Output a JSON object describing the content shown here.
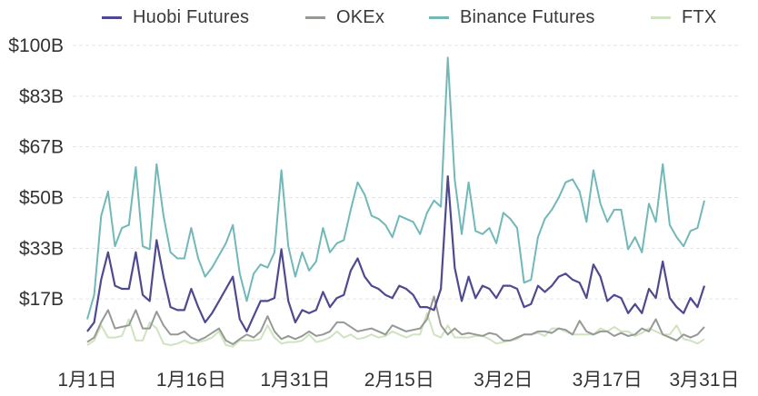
{
  "chart_data": {
    "type": "line",
    "title": "",
    "xlabel": "",
    "ylabel": "",
    "ylim": [
      0,
      100
    ],
    "y_ticks": [
      {
        "value": 16.67,
        "label": "$17B"
      },
      {
        "value": 33.33,
        "label": "$33B"
      },
      {
        "value": 50,
        "label": "$50B"
      },
      {
        "value": 66.67,
        "label": "$67B"
      },
      {
        "value": 83.33,
        "label": "$83B"
      },
      {
        "value": 100,
        "label": "$100B"
      }
    ],
    "x_ticks": [
      {
        "index": 0,
        "label": "1月1日"
      },
      {
        "index": 15,
        "label": "1月16日"
      },
      {
        "index": 30,
        "label": "1月31日"
      },
      {
        "index": 45,
        "label": "2月15日"
      },
      {
        "index": 60,
        "label": "3月2日"
      },
      {
        "index": 75,
        "label": "3月17日"
      },
      {
        "index": 89,
        "label": "3月31日"
      }
    ],
    "series": [
      {
        "name": "FTX",
        "color": "#cfe3c0",
        "values": [
          1.5,
          3,
          8,
          4,
          4,
          4.5,
          10,
          3,
          3,
          9,
          7,
          2,
          1.5,
          2,
          3,
          2,
          2.5,
          3,
          4,
          6,
          1.5,
          1,
          3,
          3,
          3,
          3.5,
          8,
          4,
          2,
          2.5,
          2.5,
          3,
          5,
          2.5,
          3,
          4,
          6,
          4,
          5,
          3.5,
          4,
          5,
          4,
          4.5,
          6,
          5,
          4,
          5,
          5,
          12,
          5,
          4,
          8,
          4,
          4,
          4,
          4.5,
          4.5,
          3.5,
          2,
          2.5,
          3,
          3.5,
          5,
          5,
          5.5,
          4.5,
          7,
          7,
          6,
          5,
          5,
          5,
          5,
          7,
          6,
          7.5,
          6,
          6,
          4.5,
          5.5,
          7,
          6,
          5,
          5,
          8,
          3.5,
          3,
          2,
          3.5
        ]
      },
      {
        "name": "OKEx",
        "color": "#959a95",
        "values": [
          2.5,
          4,
          9,
          13,
          7,
          7.5,
          8,
          13,
          7,
          7,
          12.5,
          8,
          5,
          5,
          6,
          4,
          3,
          4,
          5.5,
          7,
          3,
          1.8,
          3.5,
          5,
          4,
          6,
          11,
          6,
          3.5,
          4.5,
          3.5,
          4.5,
          6,
          4.5,
          5,
          6,
          9,
          9,
          7.5,
          6,
          6.5,
          7,
          6,
          5,
          8,
          7,
          6,
          6.5,
          7,
          10,
          17.5,
          8,
          5,
          7,
          5,
          5.5,
          5,
          4.5,
          5.5,
          5,
          3,
          3,
          4,
          5,
          5,
          6,
          6,
          5.5,
          7,
          6.5,
          5,
          9.5,
          6,
          5,
          6,
          6,
          4.5,
          5.5,
          4.5,
          5,
          7,
          6,
          10,
          5,
          4,
          3,
          5,
          4,
          5,
          7.5
        ]
      },
      {
        "name": "Binance Futures",
        "color": "#72b8b8",
        "values": [
          10,
          18,
          44,
          52,
          34,
          40,
          41,
          60,
          34,
          33,
          61,
          44,
          32,
          30,
          30,
          40,
          30,
          24,
          27,
          31,
          35,
          41,
          25,
          16,
          25,
          28,
          27,
          32,
          59,
          34,
          24,
          32,
          26,
          29,
          40,
          32,
          35,
          36,
          46,
          55,
          51,
          44,
          43,
          41,
          37,
          44,
          43,
          42,
          38,
          45,
          49,
          47,
          96,
          56,
          38,
          55,
          39,
          38,
          40,
          35,
          45,
          43,
          40,
          22,
          23,
          37,
          43,
          46,
          50,
          55,
          56,
          52,
          42,
          59,
          48,
          42,
          46,
          46,
          33,
          37,
          32,
          48,
          42,
          61,
          41,
          37,
          34,
          39,
          40,
          49
        ]
      },
      {
        "name": "Huobi Futures",
        "color": "#4f4a8f",
        "values": [
          6,
          9,
          23,
          32,
          21,
          20,
          20,
          32,
          18,
          16,
          36,
          24,
          14,
          13,
          13,
          20,
          14,
          9,
          12,
          16,
          20,
          24,
          10,
          6,
          11,
          16,
          16,
          17,
          33,
          16,
          9,
          13,
          12,
          13,
          19,
          14,
          17,
          18,
          26,
          30,
          24,
          21,
          20,
          18,
          17,
          21,
          20,
          18,
          14,
          14,
          13,
          20,
          57,
          27,
          16,
          24,
          17,
          21,
          20,
          17,
          21,
          21,
          20,
          14,
          15,
          21,
          19,
          21,
          24,
          25,
          23,
          22,
          17,
          28,
          24,
          16,
          18,
          17,
          12,
          15,
          12,
          20,
          17,
          29,
          17,
          14,
          12,
          17,
          14,
          21
        ]
      }
    ]
  },
  "legend": {
    "items": [
      {
        "label": "Huobi Futures",
        "color": "#4f4a8f"
      },
      {
        "label": "OKEx",
        "color": "#959a95"
      },
      {
        "label": "Binance Futures",
        "color": "#72b8b8"
      },
      {
        "label": "FTX",
        "color": "#cfe3c0"
      }
    ]
  }
}
